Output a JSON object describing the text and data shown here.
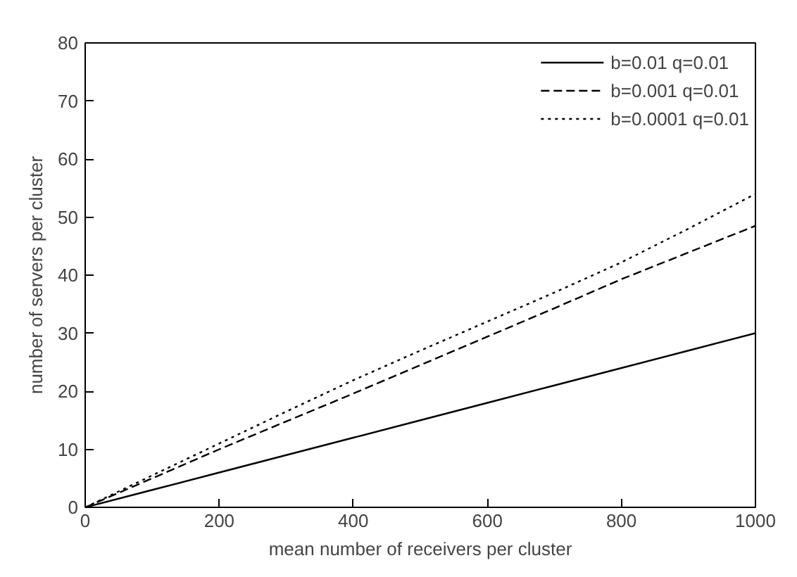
{
  "chart_data": {
    "type": "line",
    "xlabel": "mean number of receivers per cluster",
    "ylabel": "number of servers per cluster",
    "x": [
      0,
      100,
      200,
      300,
      400,
      500,
      600,
      700,
      800,
      900,
      1000
    ],
    "series": [
      {
        "name": "b=0.01 q=0.01",
        "color": "#000000",
        "line_style": "solid",
        "values": [
          0,
          3,
          6,
          9,
          12,
          15,
          18,
          21,
          24,
          27,
          30
        ]
      },
      {
        "name": "b=0.001 q=0.01",
        "color": "#000000",
        "line_style": "dashed",
        "values": [
          0,
          5,
          10,
          14.8,
          19.6,
          24.5,
          29.4,
          34.3,
          39.3,
          43.9,
          48.5
        ]
      },
      {
        "name": "b=0.0001 q=0.01",
        "color": "#000000",
        "line_style": "dotted",
        "values": [
          0,
          5.5,
          11,
          16.5,
          21.9,
          27,
          32,
          37,
          42.2,
          48,
          54
        ]
      }
    ],
    "xlim": [
      0,
      1000
    ],
    "ylim": [
      0,
      80
    ],
    "xticks": [
      0,
      200,
      400,
      600,
      800,
      1000
    ],
    "yticks": [
      0,
      10,
      20,
      30,
      40,
      50,
      60,
      70,
      80
    ],
    "grid": false,
    "legend": "top right"
  }
}
